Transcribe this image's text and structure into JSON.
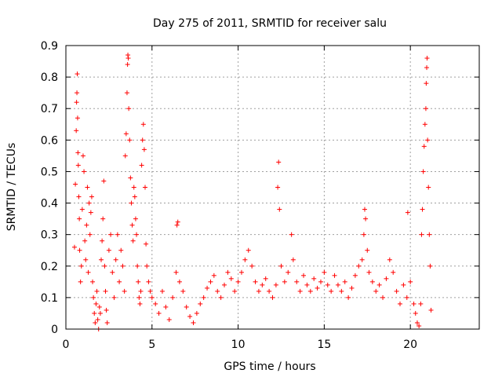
{
  "chart_data": {
    "type": "scatter",
    "title": "Day 275 of 2011, SRMTID for receiver salu",
    "xlabel": "GPS time / hours",
    "ylabel": "SRMTID / TECUs",
    "xlim": [
      0,
      24
    ],
    "ylim": [
      0,
      0.9
    ],
    "xticks": [
      0,
      5,
      10,
      15,
      20
    ],
    "yticks": [
      0,
      0.1,
      0.2,
      0.3,
      0.4,
      0.5,
      0.6,
      0.7,
      0.8,
      0.9
    ],
    "xtick_labels": [
      "0",
      "5",
      "10",
      "15",
      "20"
    ],
    "ytick_labels": [
      "0",
      "0.1",
      "0.2",
      "0.3",
      "0.4",
      "0.5",
      "0.6",
      "0.7",
      "0.8",
      "0.9"
    ],
    "grid": true,
    "marker": "+",
    "color": "#ff0000",
    "series": [
      {
        "name": "SRMTID",
        "points": [
          [
            0.5,
            0.26
          ],
          [
            0.55,
            0.46
          ],
          [
            0.6,
            0.63
          ],
          [
            0.62,
            0.72
          ],
          [
            0.64,
            0.75
          ],
          [
            0.66,
            0.81
          ],
          [
            0.68,
            0.67
          ],
          [
            0.7,
            0.56
          ],
          [
            0.72,
            0.52
          ],
          [
            0.75,
            0.42
          ],
          [
            0.78,
            0.35
          ],
          [
            0.8,
            0.25
          ],
          [
            0.85,
            0.15
          ],
          [
            0.9,
            0.2
          ],
          [
            0.95,
            0.38
          ],
          [
            1.0,
            0.55
          ],
          [
            1.05,
            0.5
          ],
          [
            1.1,
            0.28
          ],
          [
            1.15,
            0.22
          ],
          [
            1.2,
            0.33
          ],
          [
            1.25,
            0.45
          ],
          [
            1.3,
            0.18
          ],
          [
            1.35,
            0.4
          ],
          [
            1.4,
            0.3
          ],
          [
            1.45,
            0.37
          ],
          [
            1.5,
            0.42
          ],
          [
            1.55,
            0.15
          ],
          [
            1.6,
            0.1
          ],
          [
            1.65,
            0.05
          ],
          [
            1.7,
            0.02
          ],
          [
            1.75,
            0.08
          ],
          [
            1.8,
            0.12
          ],
          [
            1.85,
            0.03
          ],
          [
            1.9,
            0.0
          ],
          [
            1.95,
            0.07
          ],
          [
            2.0,
            0.05
          ],
          [
            2.05,
            0.22
          ],
          [
            2.1,
            0.28
          ],
          [
            2.15,
            0.35
          ],
          [
            2.2,
            0.47
          ],
          [
            2.25,
            0.2
          ],
          [
            2.3,
            0.12
          ],
          [
            2.35,
            0.06
          ],
          [
            2.4,
            0.02
          ],
          [
            2.5,
            0.25
          ],
          [
            2.6,
            0.3
          ],
          [
            2.7,
            0.18
          ],
          [
            2.8,
            0.1
          ],
          [
            2.9,
            0.22
          ],
          [
            3.0,
            0.3
          ],
          [
            3.1,
            0.15
          ],
          [
            3.2,
            0.25
          ],
          [
            3.3,
            0.2
          ],
          [
            3.4,
            0.12
          ],
          [
            3.45,
            0.55
          ],
          [
            3.5,
            0.62
          ],
          [
            3.55,
            0.75
          ],
          [
            3.58,
            0.84
          ],
          [
            3.6,
            0.87
          ],
          [
            3.62,
            0.86
          ],
          [
            3.65,
            0.7
          ],
          [
            3.7,
            0.6
          ],
          [
            3.75,
            0.48
          ],
          [
            3.8,
            0.4
          ],
          [
            3.85,
            0.33
          ],
          [
            3.9,
            0.28
          ],
          [
            3.95,
            0.45
          ],
          [
            4.0,
            0.42
          ],
          [
            4.05,
            0.35
          ],
          [
            4.1,
            0.3
          ],
          [
            4.15,
            0.2
          ],
          [
            4.2,
            0.15
          ],
          [
            4.25,
            0.1
          ],
          [
            4.3,
            0.08
          ],
          [
            4.35,
            0.12
          ],
          [
            4.4,
            0.52
          ],
          [
            4.45,
            0.6
          ],
          [
            4.5,
            0.65
          ],
          [
            4.55,
            0.57
          ],
          [
            4.6,
            0.45
          ],
          [
            4.65,
            0.27
          ],
          [
            4.7,
            0.2
          ],
          [
            4.8,
            0.15
          ],
          [
            4.9,
            0.12
          ],
          [
            5.0,
            0.1
          ],
          [
            5.2,
            0.08
          ],
          [
            5.4,
            0.05
          ],
          [
            5.6,
            0.12
          ],
          [
            5.8,
            0.07
          ],
          [
            6.0,
            0.03
          ],
          [
            6.2,
            0.1
          ],
          [
            6.4,
            0.18
          ],
          [
            6.45,
            0.33
          ],
          [
            6.5,
            0.34
          ],
          [
            6.6,
            0.15
          ],
          [
            6.8,
            0.12
          ],
          [
            7.0,
            0.07
          ],
          [
            7.2,
            0.04
          ],
          [
            7.4,
            0.02
          ],
          [
            7.6,
            0.05
          ],
          [
            7.8,
            0.08
          ],
          [
            8.0,
            0.1
          ],
          [
            8.2,
            0.13
          ],
          [
            8.4,
            0.15
          ],
          [
            8.6,
            0.17
          ],
          [
            8.8,
            0.12
          ],
          [
            9.0,
            0.1
          ],
          [
            9.2,
            0.14
          ],
          [
            9.4,
            0.18
          ],
          [
            9.6,
            0.16
          ],
          [
            9.8,
            0.12
          ],
          [
            10.0,
            0.15
          ],
          [
            10.2,
            0.18
          ],
          [
            10.4,
            0.22
          ],
          [
            10.6,
            0.25
          ],
          [
            10.8,
            0.2
          ],
          [
            11.0,
            0.15
          ],
          [
            11.2,
            0.12
          ],
          [
            11.4,
            0.14
          ],
          [
            11.6,
            0.16
          ],
          [
            11.8,
            0.12
          ],
          [
            12.0,
            0.1
          ],
          [
            12.2,
            0.14
          ],
          [
            12.3,
            0.45
          ],
          [
            12.35,
            0.53
          ],
          [
            12.4,
            0.38
          ],
          [
            12.5,
            0.2
          ],
          [
            12.7,
            0.15
          ],
          [
            12.9,
            0.18
          ],
          [
            13.1,
            0.3
          ],
          [
            13.2,
            0.22
          ],
          [
            13.4,
            0.15
          ],
          [
            13.6,
            0.12
          ],
          [
            13.8,
            0.17
          ],
          [
            14.0,
            0.14
          ],
          [
            14.2,
            0.12
          ],
          [
            14.4,
            0.16
          ],
          [
            14.6,
            0.13
          ],
          [
            14.8,
            0.15
          ],
          [
            15.0,
            0.18
          ],
          [
            15.2,
            0.14
          ],
          [
            15.4,
            0.12
          ],
          [
            15.6,
            0.17
          ],
          [
            15.8,
            0.14
          ],
          [
            16.0,
            0.12
          ],
          [
            16.2,
            0.15
          ],
          [
            16.4,
            0.1
          ],
          [
            16.6,
            0.13
          ],
          [
            16.8,
            0.17
          ],
          [
            17.0,
            0.2
          ],
          [
            17.2,
            0.22
          ],
          [
            17.3,
            0.3
          ],
          [
            17.35,
            0.38
          ],
          [
            17.4,
            0.35
          ],
          [
            17.5,
            0.25
          ],
          [
            17.6,
            0.18
          ],
          [
            17.8,
            0.15
          ],
          [
            18.0,
            0.12
          ],
          [
            18.2,
            0.14
          ],
          [
            18.4,
            0.1
          ],
          [
            18.6,
            0.16
          ],
          [
            18.8,
            0.22
          ],
          [
            19.0,
            0.18
          ],
          [
            19.2,
            0.12
          ],
          [
            19.4,
            0.08
          ],
          [
            19.6,
            0.14
          ],
          [
            19.8,
            0.1
          ],
          [
            19.85,
            0.37
          ],
          [
            20.0,
            0.15
          ],
          [
            20.2,
            0.08
          ],
          [
            20.3,
            0.05
          ],
          [
            20.4,
            0.02
          ],
          [
            20.5,
            0.01
          ],
          [
            20.6,
            0.08
          ],
          [
            20.65,
            0.3
          ],
          [
            20.7,
            0.38
          ],
          [
            20.75,
            0.5
          ],
          [
            20.8,
            0.58
          ],
          [
            20.85,
            0.65
          ],
          [
            20.9,
            0.7
          ],
          [
            20.92,
            0.78
          ],
          [
            20.95,
            0.83
          ],
          [
            20.97,
            0.86
          ],
          [
            21.0,
            0.6
          ],
          [
            21.05,
            0.45
          ],
          [
            21.1,
            0.3
          ],
          [
            21.15,
            0.2
          ],
          [
            21.2,
            0.06
          ]
        ]
      }
    ]
  }
}
